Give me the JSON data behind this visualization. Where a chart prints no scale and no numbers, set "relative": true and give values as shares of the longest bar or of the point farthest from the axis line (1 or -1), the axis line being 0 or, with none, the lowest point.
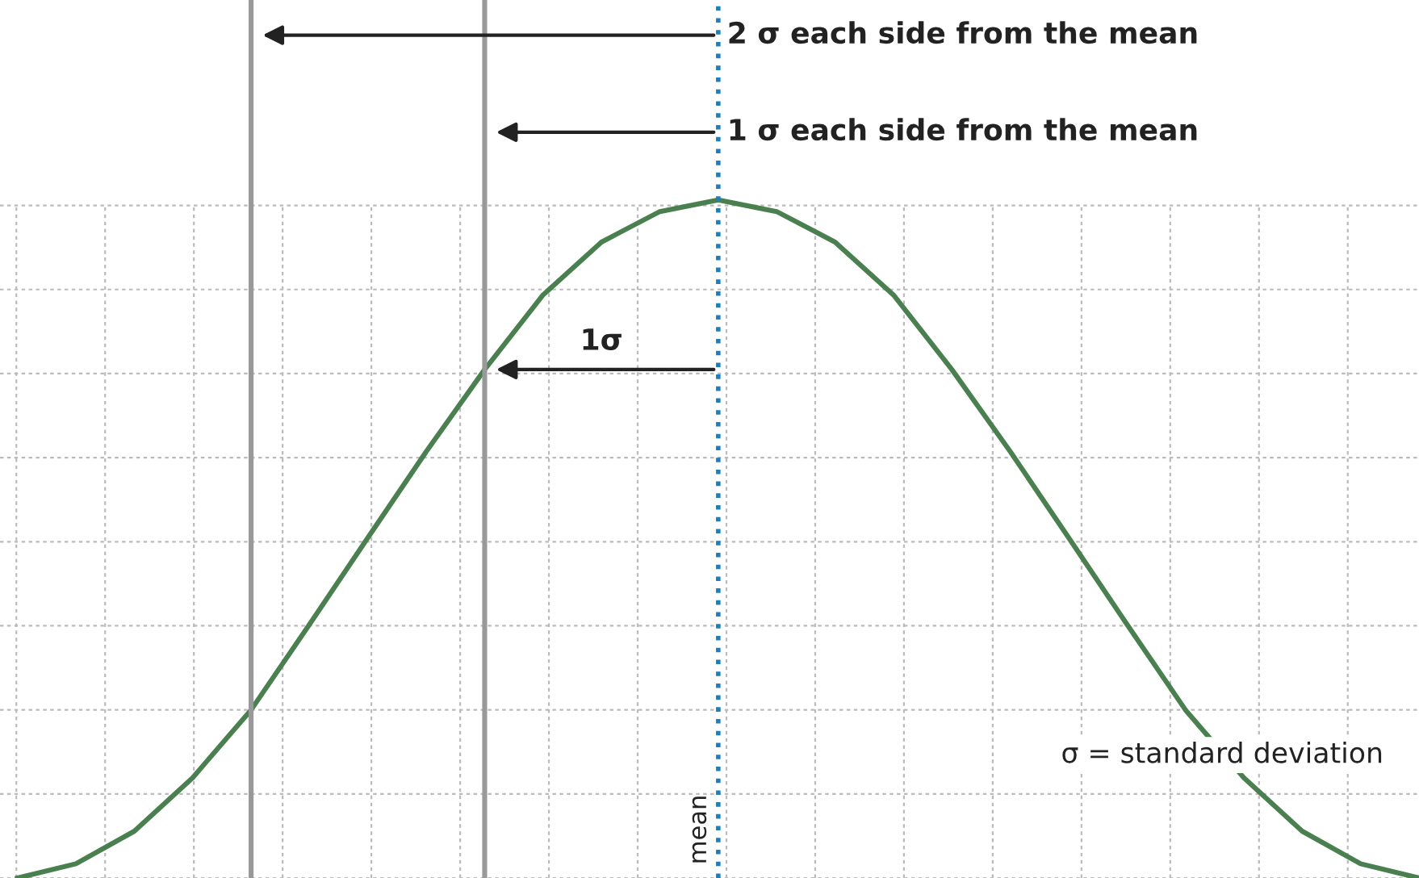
{
  "chart_data": {
    "type": "line",
    "relative": true,
    "categories": [
      null,
      null,
      null,
      null,
      null,
      null,
      null,
      null,
      null,
      null,
      null,
      null,
      null,
      null,
      null,
      null,
      null,
      null,
      null,
      null,
      null,
      null,
      null,
      null,
      null
    ],
    "series": [
      {
        "color": "#4a7f4f",
        "values": [
          0.0,
          0.021,
          0.069,
          0.148,
          0.248,
          0.374,
          0.502,
          0.629,
          0.75,
          0.86,
          0.938,
          0.983,
          1.0,
          0.983,
          0.938,
          0.86,
          0.75,
          0.629,
          0.502,
          0.374,
          0.248,
          0.148,
          0.069,
          0.021,
          0.0
        ]
      }
    ],
    "annotations": [
      "2 σ each side from the mean",
      "1 σ each side from the mean",
      "1σ",
      "mean",
      "σ = standard deviation"
    ],
    "grid": true,
    "marker": "none",
    "line_style": "solid",
    "legend": false
  }
}
